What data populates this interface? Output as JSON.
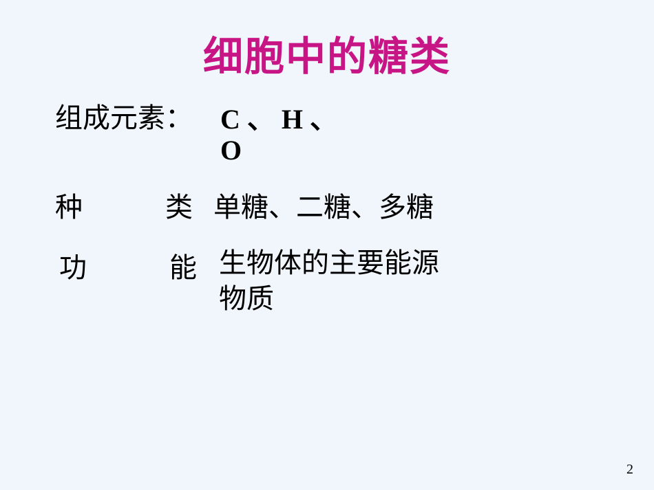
{
  "slide": {
    "background_color": "#f0f6fc",
    "title": {
      "text": "细胞中的糖类",
      "color": "#c71585",
      "fontsize": 58,
      "font_weight": "bold"
    },
    "rows": [
      {
        "label": "组成元素：",
        "value_line1": "C 、 H 、",
        "value_line2": "O",
        "label_fontsize": 40,
        "value_fontsize": 40,
        "value_bold": true
      },
      {
        "label_char1": "种",
        "label_char2": "类",
        "overlap_text": "单糖、二糖、多糖",
        "label_fontsize": 40,
        "value_fontsize": 40
      },
      {
        "label_char1": "功",
        "label_char2": "能",
        "overlap_line1": "生物体的主要能源",
        "overlap_line2": "物质",
        "label_fontsize": 40,
        "value_fontsize": 40
      }
    ],
    "page_number": "2",
    "text_color": "#000000"
  }
}
